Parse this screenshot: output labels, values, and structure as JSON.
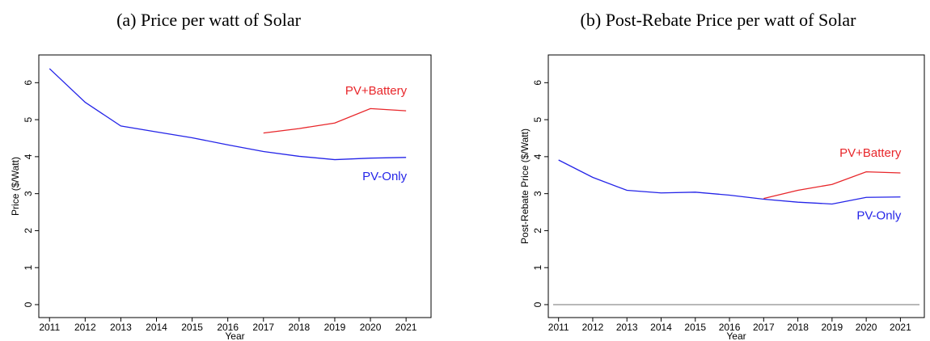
{
  "chart_data": [
    {
      "type": "line",
      "title": "(a) Price per watt of Solar",
      "x_label": "Year",
      "y_label": "Price ($/Watt)",
      "x": [
        2011,
        2012,
        2013,
        2014,
        2015,
        2016,
        2017,
        2018,
        2019,
        2020,
        2021
      ],
      "series": [
        {
          "name": "PV+Battery",
          "color": "#e8262a",
          "values": [
            null,
            null,
            null,
            null,
            null,
            null,
            4.64,
            4.76,
            4.91,
            5.3,
            5.24
          ]
        },
        {
          "name": "PV-Only",
          "color": "#2424e8",
          "values": [
            6.38,
            5.47,
            4.83,
            4.67,
            4.51,
            4.32,
            4.14,
            4.01,
            3.92,
            3.96,
            3.98
          ]
        }
      ],
      "xlim": [
        2010.7,
        2021.7
      ],
      "xticks": [
        2011,
        2012,
        2013,
        2014,
        2015,
        2016,
        2017,
        2018,
        2019,
        2020,
        2021
      ],
      "ylim": [
        -0.35,
        6.75
      ],
      "yticks": [
        0,
        1,
        2,
        3,
        4,
        5,
        6
      ]
    },
    {
      "type": "line",
      "title": "(b) Post-Rebate Price per watt of Solar",
      "x_label": "Year",
      "y_label": "Post-Rebate Price ($/Watt)",
      "x": [
        2011,
        2012,
        2013,
        2014,
        2015,
        2016,
        2017,
        2018,
        2019,
        2020,
        2021
      ],
      "series": [
        {
          "name": "PV+Battery",
          "color": "#e8262a",
          "values": [
            null,
            null,
            null,
            null,
            null,
            null,
            2.87,
            3.09,
            3.25,
            3.59,
            3.56
          ]
        },
        {
          "name": "PV-Only",
          "color": "#2424e8",
          "values": [
            3.91,
            3.44,
            3.09,
            3.02,
            3.04,
            2.96,
            2.85,
            2.77,
            2.72,
            2.9,
            2.91
          ]
        }
      ],
      "xlim": [
        2010.7,
        2021.7
      ],
      "xticks": [
        2011,
        2012,
        2013,
        2014,
        2015,
        2016,
        2017,
        2018,
        2019,
        2020,
        2021
      ],
      "ylim": [
        -0.35,
        6.75
      ],
      "yticks": [
        0,
        1,
        2,
        3,
        4,
        5,
        6
      ],
      "reference_line": 0,
      "reference_color": "#a0a0a0"
    }
  ]
}
